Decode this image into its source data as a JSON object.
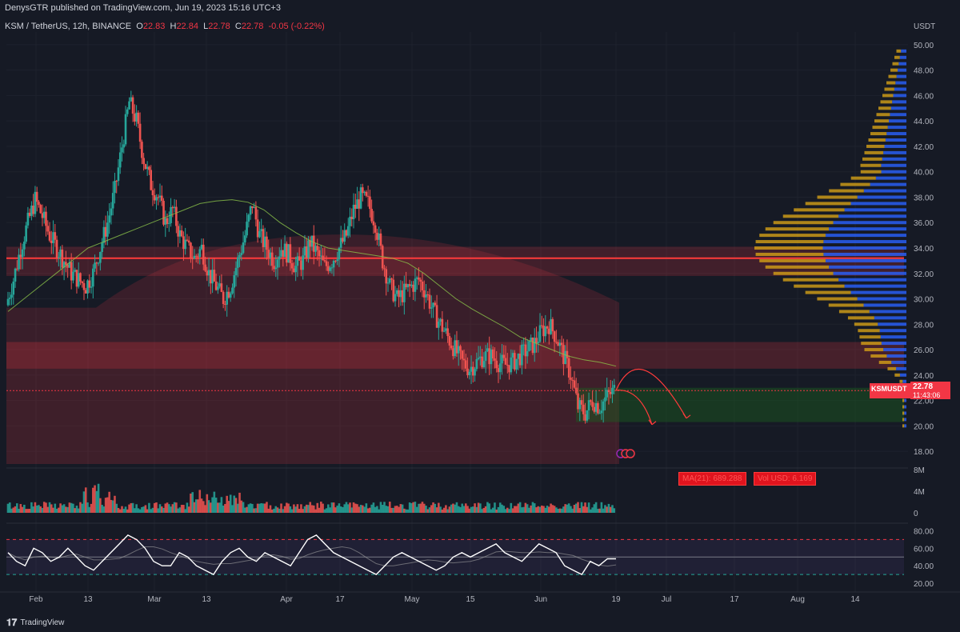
{
  "header": {
    "published": "DenysGTR published on TradingView.com, Jun 19, 2023 15:16 UTC+3"
  },
  "legend": {
    "symbol": "KSM / TetherUS, 12h, BINANCE",
    "o_label": "O",
    "o": "22.83",
    "h_label": "H",
    "h": "22.84",
    "l_label": "L",
    "l": "22.78",
    "c_label": "C",
    "c": "22.78",
    "change": "-0.05 (-0.22%)"
  },
  "price_tag": {
    "symbol": "KSMUSDT",
    "price": "22.78",
    "timer": "11:43:06"
  },
  "volume_badges": {
    "ma": "MA(21): 689.288",
    "vol": "Vol USD: 6.169"
  },
  "footer": {
    "brand": "TradingView"
  },
  "colors": {
    "bg": "#161a25",
    "up": "#26a69a",
    "down": "#ef5350",
    "accent_red": "#f23645",
    "poc_line": "#ff3b3b",
    "vp_blue": "#2962ff",
    "vp_gold": "#d4a017"
  },
  "chart_data": [
    {
      "type": "candlestick",
      "title": "KSM / TetherUS, 12h, BINANCE",
      "y_axis_label": "USDT",
      "y_ticks": [
        "50.00",
        "48.00",
        "46.00",
        "44.00",
        "42.00",
        "40.00",
        "38.00",
        "36.00",
        "34.00",
        "32.00",
        "30.00",
        "28.00",
        "26.00",
        "24.00",
        "22.00",
        "20.00",
        "18.00"
      ],
      "x_ticks": [
        "Feb",
        "13",
        "Mar",
        "13",
        "Apr",
        "17",
        "May",
        "15",
        "Jun",
        "19",
        "Jul",
        "17",
        "Aug",
        "14"
      ],
      "ylim": [
        17,
        51
      ],
      "close_path": [
        29.5,
        31.5,
        34,
        36,
        37.8,
        36.5,
        35,
        34,
        33,
        32,
        31.5,
        31,
        32,
        34,
        36,
        38.5,
        42,
        45.5,
        44,
        41,
        39,
        38,
        36,
        37,
        35,
        34,
        33.2,
        34,
        32,
        31,
        30,
        31,
        33,
        35,
        37.5,
        35,
        34,
        33,
        34,
        33.5,
        32.5,
        33,
        34.5,
        33.5,
        32.5,
        33,
        34,
        35,
        37,
        38,
        37.5,
        36,
        33,
        31,
        30,
        30.5,
        31,
        31.5,
        30.5,
        29,
        28,
        27,
        26,
        25,
        24.5,
        25,
        25.5,
        25.5,
        25,
        24.8,
        25,
        25.5,
        26,
        26.5,
        27.5,
        28,
        27,
        25.5,
        24,
        21.5,
        21,
        22,
        21.5,
        22.3,
        22.8
      ],
      "ma_path": [
        29,
        30,
        31,
        32,
        33,
        34,
        34.5,
        35,
        35.5,
        36,
        36.5,
        37,
        37.5,
        37.7,
        37.8,
        37.6,
        37,
        36,
        35.2,
        34.5,
        34,
        33.8,
        33.6,
        33.4,
        33.2,
        32.8,
        32,
        31,
        30,
        29.2,
        28.5,
        27.8,
        27,
        26.5,
        26,
        25.5,
        25.2,
        25,
        24.7
      ],
      "poc_price": 33.2,
      "resistance_zone": [
        31.8,
        34.1
      ],
      "sr_zone": [
        24.5,
        26.6
      ],
      "buy_zone": [
        20.3,
        23.0
      ],
      "current_price": 22.78,
      "volume_profile_rows_note": "",
      "volume": {
        "y_ticks": [
          "8M",
          "4M",
          "0"
        ],
        "ma": 689.288
      },
      "rsi": {
        "y_ticks": [
          "80.00",
          "60.00",
          "40.00",
          "20.00"
        ],
        "upper": 70,
        "lower": 30,
        "mid": 50,
        "series": [
          55,
          45,
          40,
          60,
          55,
          45,
          50,
          60,
          50,
          40,
          35,
          45,
          55,
          65,
          75,
          70,
          60,
          45,
          40,
          40,
          55,
          50,
          40,
          35,
          30,
          45,
          55,
          60,
          50,
          45,
          55,
          50,
          45,
          40,
          55,
          70,
          75,
          65,
          55,
          50,
          45,
          40,
          35,
          30,
          40,
          50,
          55,
          50,
          45,
          40,
          35,
          40,
          50,
          55,
          50,
          55,
          60,
          65,
          55,
          50,
          45,
          55,
          65,
          60,
          55,
          40,
          35,
          30,
          45,
          40,
          48,
          48
        ]
      }
    }
  ]
}
